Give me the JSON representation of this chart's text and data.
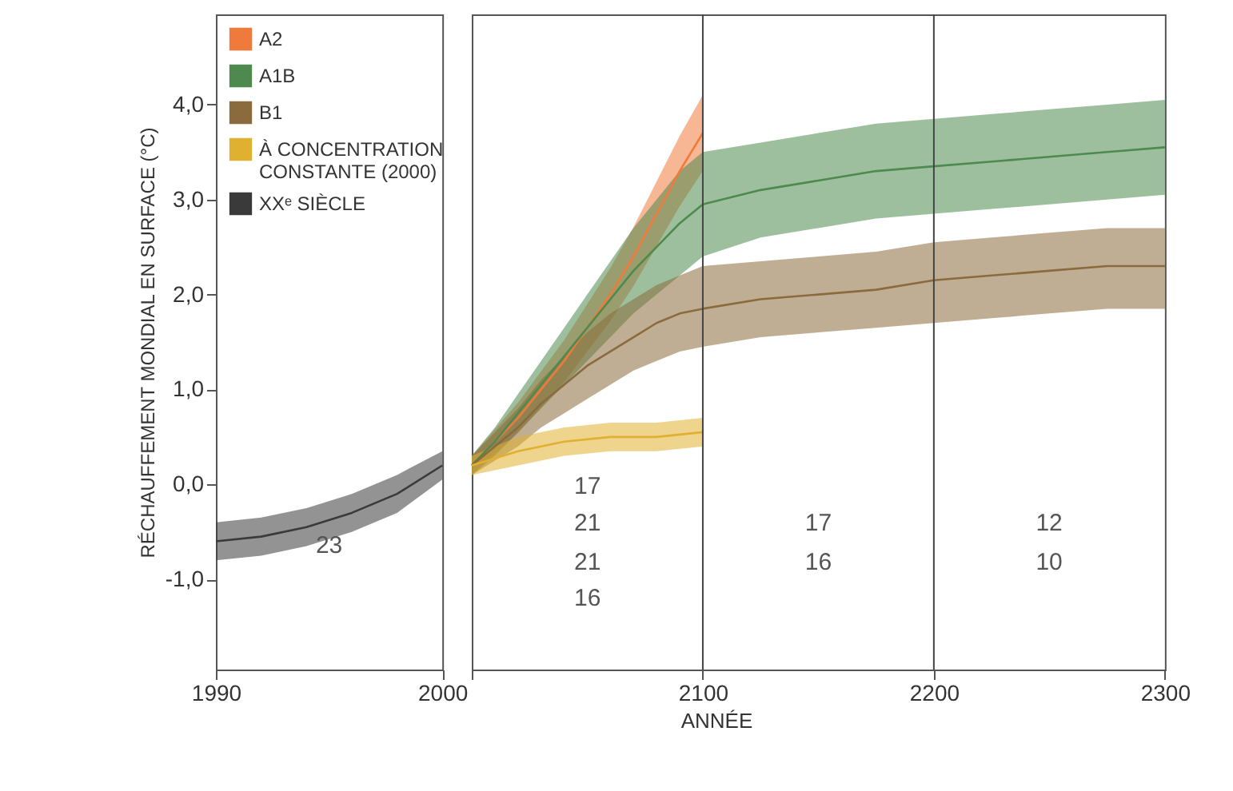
{
  "chart_data": [
    {
      "type": "line",
      "ylabel": "RÉCHAUFFEMENT MONDIAL EN SURFACE (°C)",
      "xlim": [
        1990,
        2000
      ],
      "xticks": [
        1990,
        2000
      ],
      "ylim": [
        -1.95,
        4.95
      ],
      "yticks": [
        {
          "value": -1,
          "label": "-1,0"
        },
        {
          "value": 0,
          "label": "0,0"
        },
        {
          "value": 1,
          "label": "1,0"
        },
        {
          "value": 2,
          "label": "2,0"
        },
        {
          "value": 3,
          "label": "3,0"
        },
        {
          "value": 4,
          "label": "4,0"
        }
      ],
      "grid": false,
      "legend": "top left",
      "series": [
        {
          "name": "XXᵉ SIÈCLE",
          "color": "#3a3a3a",
          "x": [
            1990,
            1992,
            1994,
            1996,
            1998,
            2000
          ],
          "values": [
            -0.6,
            -0.55,
            -0.45,
            -0.3,
            -0.1,
            0.2
          ],
          "lower": [
            -0.8,
            -0.75,
            -0.65,
            -0.5,
            -0.3,
            0.05
          ],
          "upper": [
            -0.4,
            -0.35,
            -0.25,
            -0.1,
            0.1,
            0.35
          ]
        }
      ],
      "annotations": [
        "23"
      ]
    },
    {
      "type": "line",
      "xlabel": "ANNÉE",
      "tick_labels": "x",
      "xlim": [
        2000,
        2300
      ],
      "xticks": [
        {
          "value": 2000,
          "label": null
        },
        2100,
        2200,
        2300
      ],
      "ylim": [
        -1.95,
        4.95
      ],
      "grid": false,
      "legend": "top left",
      "series": [
        {
          "name": "A2",
          "color": "#f07a3c",
          "x": [
            2000,
            2010,
            2020,
            2030,
            2040,
            2050,
            2060,
            2070,
            2080,
            2090,
            2100
          ],
          "values": [
            0.2,
            0.45,
            0.7,
            1.0,
            1.3,
            1.65,
            2.0,
            2.4,
            2.85,
            3.3,
            3.7
          ],
          "lower": [
            0.1,
            0.32,
            0.54,
            0.81,
            1.08,
            1.4,
            1.72,
            2.09,
            2.51,
            2.93,
            3.3
          ],
          "upper": [
            0.3,
            0.58,
            0.86,
            1.19,
            1.52,
            1.9,
            2.28,
            2.71,
            3.19,
            3.67,
            4.1
          ]
        },
        {
          "name": "A1B",
          "color": "#4e8a4e",
          "x": [
            2000,
            2010,
            2020,
            2030,
            2040,
            2050,
            2060,
            2070,
            2080,
            2090,
            2100,
            2125,
            2150,
            2175,
            2200,
            2225,
            2250,
            2275,
            2300
          ],
          "values": [
            0.2,
            0.45,
            0.75,
            1.05,
            1.35,
            1.65,
            1.95,
            2.25,
            2.5,
            2.75,
            2.95,
            3.1,
            3.2,
            3.3,
            3.35,
            3.4,
            3.45,
            3.5,
            3.55
          ],
          "lower": [
            0.1,
            0.3,
            0.55,
            0.8,
            1.05,
            1.3,
            1.55,
            1.8,
            2.0,
            2.2,
            2.4,
            2.6,
            2.7,
            2.8,
            2.85,
            2.9,
            2.95,
            3.0,
            3.05
          ],
          "upper": [
            0.3,
            0.6,
            0.95,
            1.3,
            1.65,
            2.0,
            2.35,
            2.7,
            3.0,
            3.3,
            3.5,
            3.6,
            3.7,
            3.8,
            3.85,
            3.9,
            3.95,
            4.0,
            4.05
          ]
        },
        {
          "name": "B1",
          "color": "#8b6b3d",
          "x": [
            2000,
            2010,
            2020,
            2030,
            2040,
            2050,
            2060,
            2070,
            2080,
            2090,
            2100,
            2125,
            2150,
            2175,
            2200,
            2225,
            2250,
            2275,
            2300
          ],
          "values": [
            0.2,
            0.4,
            0.6,
            0.85,
            1.05,
            1.25,
            1.4,
            1.55,
            1.7,
            1.8,
            1.85,
            1.95,
            2.0,
            2.05,
            2.15,
            2.2,
            2.25,
            2.3,
            2.3
          ],
          "lower": [
            0.1,
            0.25,
            0.4,
            0.6,
            0.75,
            0.9,
            1.05,
            1.2,
            1.3,
            1.4,
            1.45,
            1.55,
            1.6,
            1.65,
            1.7,
            1.75,
            1.8,
            1.85,
            1.85
          ],
          "upper": [
            0.3,
            0.55,
            0.8,
            1.1,
            1.35,
            1.6,
            1.8,
            1.95,
            2.1,
            2.2,
            2.3,
            2.35,
            2.4,
            2.45,
            2.55,
            2.6,
            2.65,
            2.7,
            2.7
          ]
        },
        {
          "name": "À CONCENTRATION CONSTANTE (2000)",
          "color": "#e0b030",
          "x": [
            2000,
            2020,
            2040,
            2060,
            2080,
            2100
          ],
          "values": [
            0.2,
            0.35,
            0.45,
            0.5,
            0.5,
            0.55
          ],
          "lower": [
            0.1,
            0.2,
            0.3,
            0.35,
            0.35,
            0.4
          ],
          "upper": [
            0.3,
            0.5,
            0.6,
            0.65,
            0.65,
            0.7
          ]
        }
      ],
      "ref_lines": [
        {
          "axis": "x",
          "value": 2100,
          "color": "#444444"
        },
        {
          "axis": "x",
          "value": 2200,
          "color": "#444444"
        }
      ],
      "annotations": [
        "17",
        "21",
        "21",
        "16",
        "17",
        "16",
        "12",
        "10"
      ]
    }
  ]
}
